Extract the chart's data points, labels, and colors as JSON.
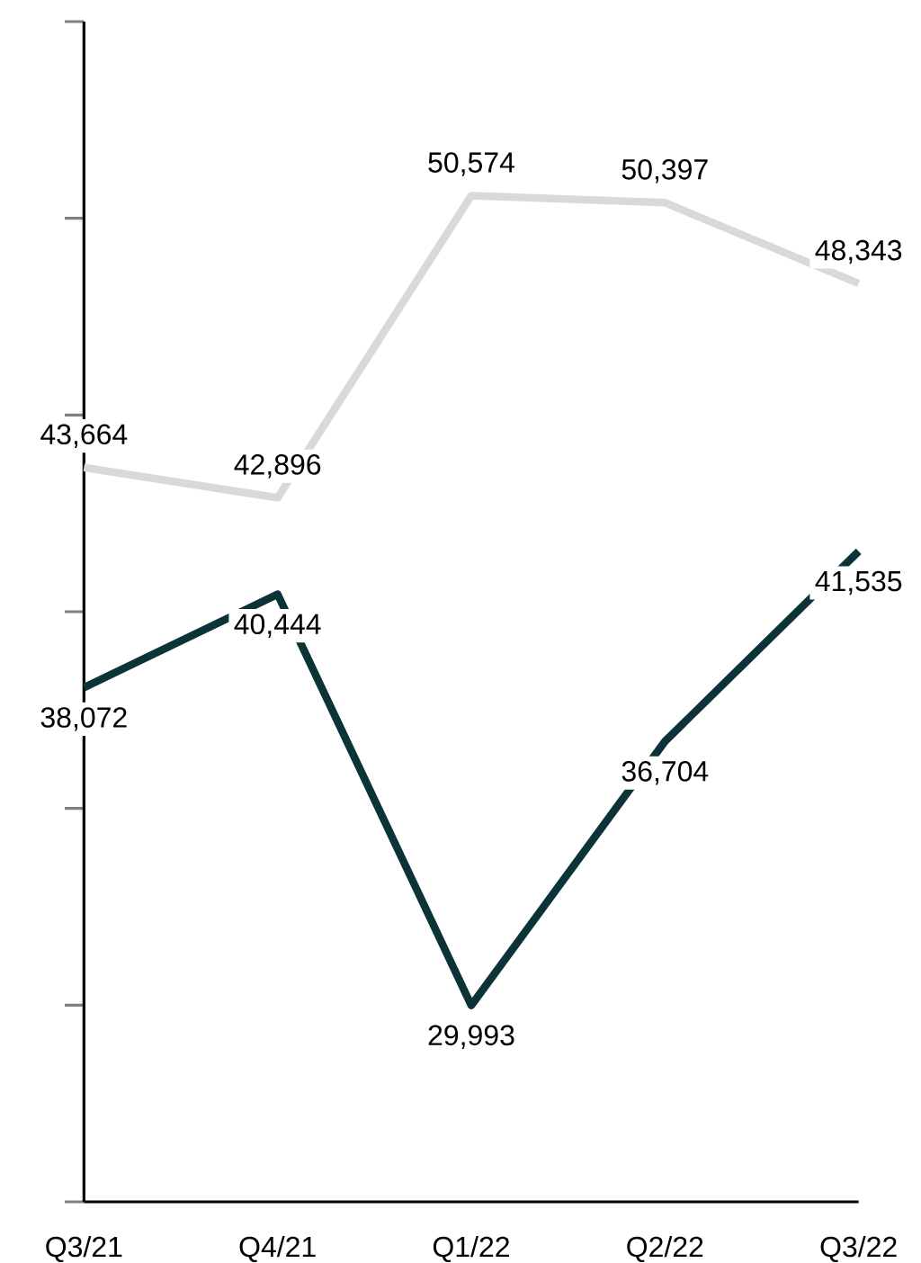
{
  "chart_data": {
    "type": "line",
    "categories": [
      "Q3/21",
      "Q4/21",
      "Q1/22",
      "Q2/22",
      "Q3/22"
    ],
    "series": [
      {
        "color": "#d9d9d9",
        "values": [
          43664,
          42896,
          50574,
          50397,
          48343
        ],
        "value_labels": [
          "43,664",
          "42,896",
          "50,574",
          "50,397",
          "48,343"
        ]
      },
      {
        "color": "#0b3338",
        "values": [
          38072,
          40444,
          29993,
          36704,
          41535
        ],
        "value_labels": [
          "38,072",
          "40,444",
          "29,993",
          "36,704",
          "41,535"
        ]
      }
    ],
    "ylim": [
      25000,
      55000
    ],
    "yticks": [
      {
        "value": 25000,
        "label": null
      },
      {
        "value": 30000,
        "label": null
      },
      {
        "value": 35000,
        "label": null
      },
      {
        "value": 40000,
        "label": null
      },
      {
        "value": 45000,
        "label": null
      },
      {
        "value": 50000,
        "label": null
      },
      {
        "value": 55000,
        "label": null
      }
    ],
    "tick_labels": "x",
    "grid": false,
    "marker": "none",
    "line_style": "solid"
  }
}
